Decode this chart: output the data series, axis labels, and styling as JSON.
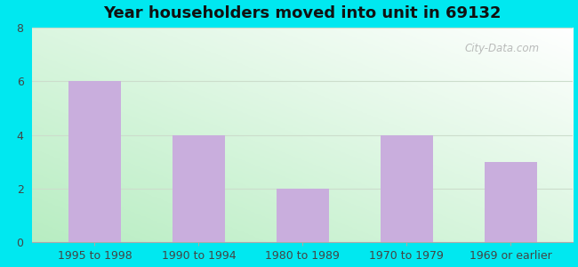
{
  "title": "Year householders moved into unit in 69132",
  "categories": [
    "1995 to 1998",
    "1990 to 1994",
    "1980 to 1989",
    "1970 to 1979",
    "1969 or earlier"
  ],
  "values": [
    6,
    4,
    2,
    4,
    3
  ],
  "bar_color": "#c9aedd",
  "ylim": [
    0,
    8
  ],
  "yticks": [
    0,
    2,
    4,
    6,
    8
  ],
  "background_outer": "#00e8f0",
  "title_fontsize": 13,
  "tick_fontsize": 9,
  "watermark_text": "City-Data.com",
  "bar_width": 0.5,
  "grid_color": "#ccddcc",
  "grad_bottom_left": "#b8eec8",
  "grad_top_right": "#f8ffff"
}
